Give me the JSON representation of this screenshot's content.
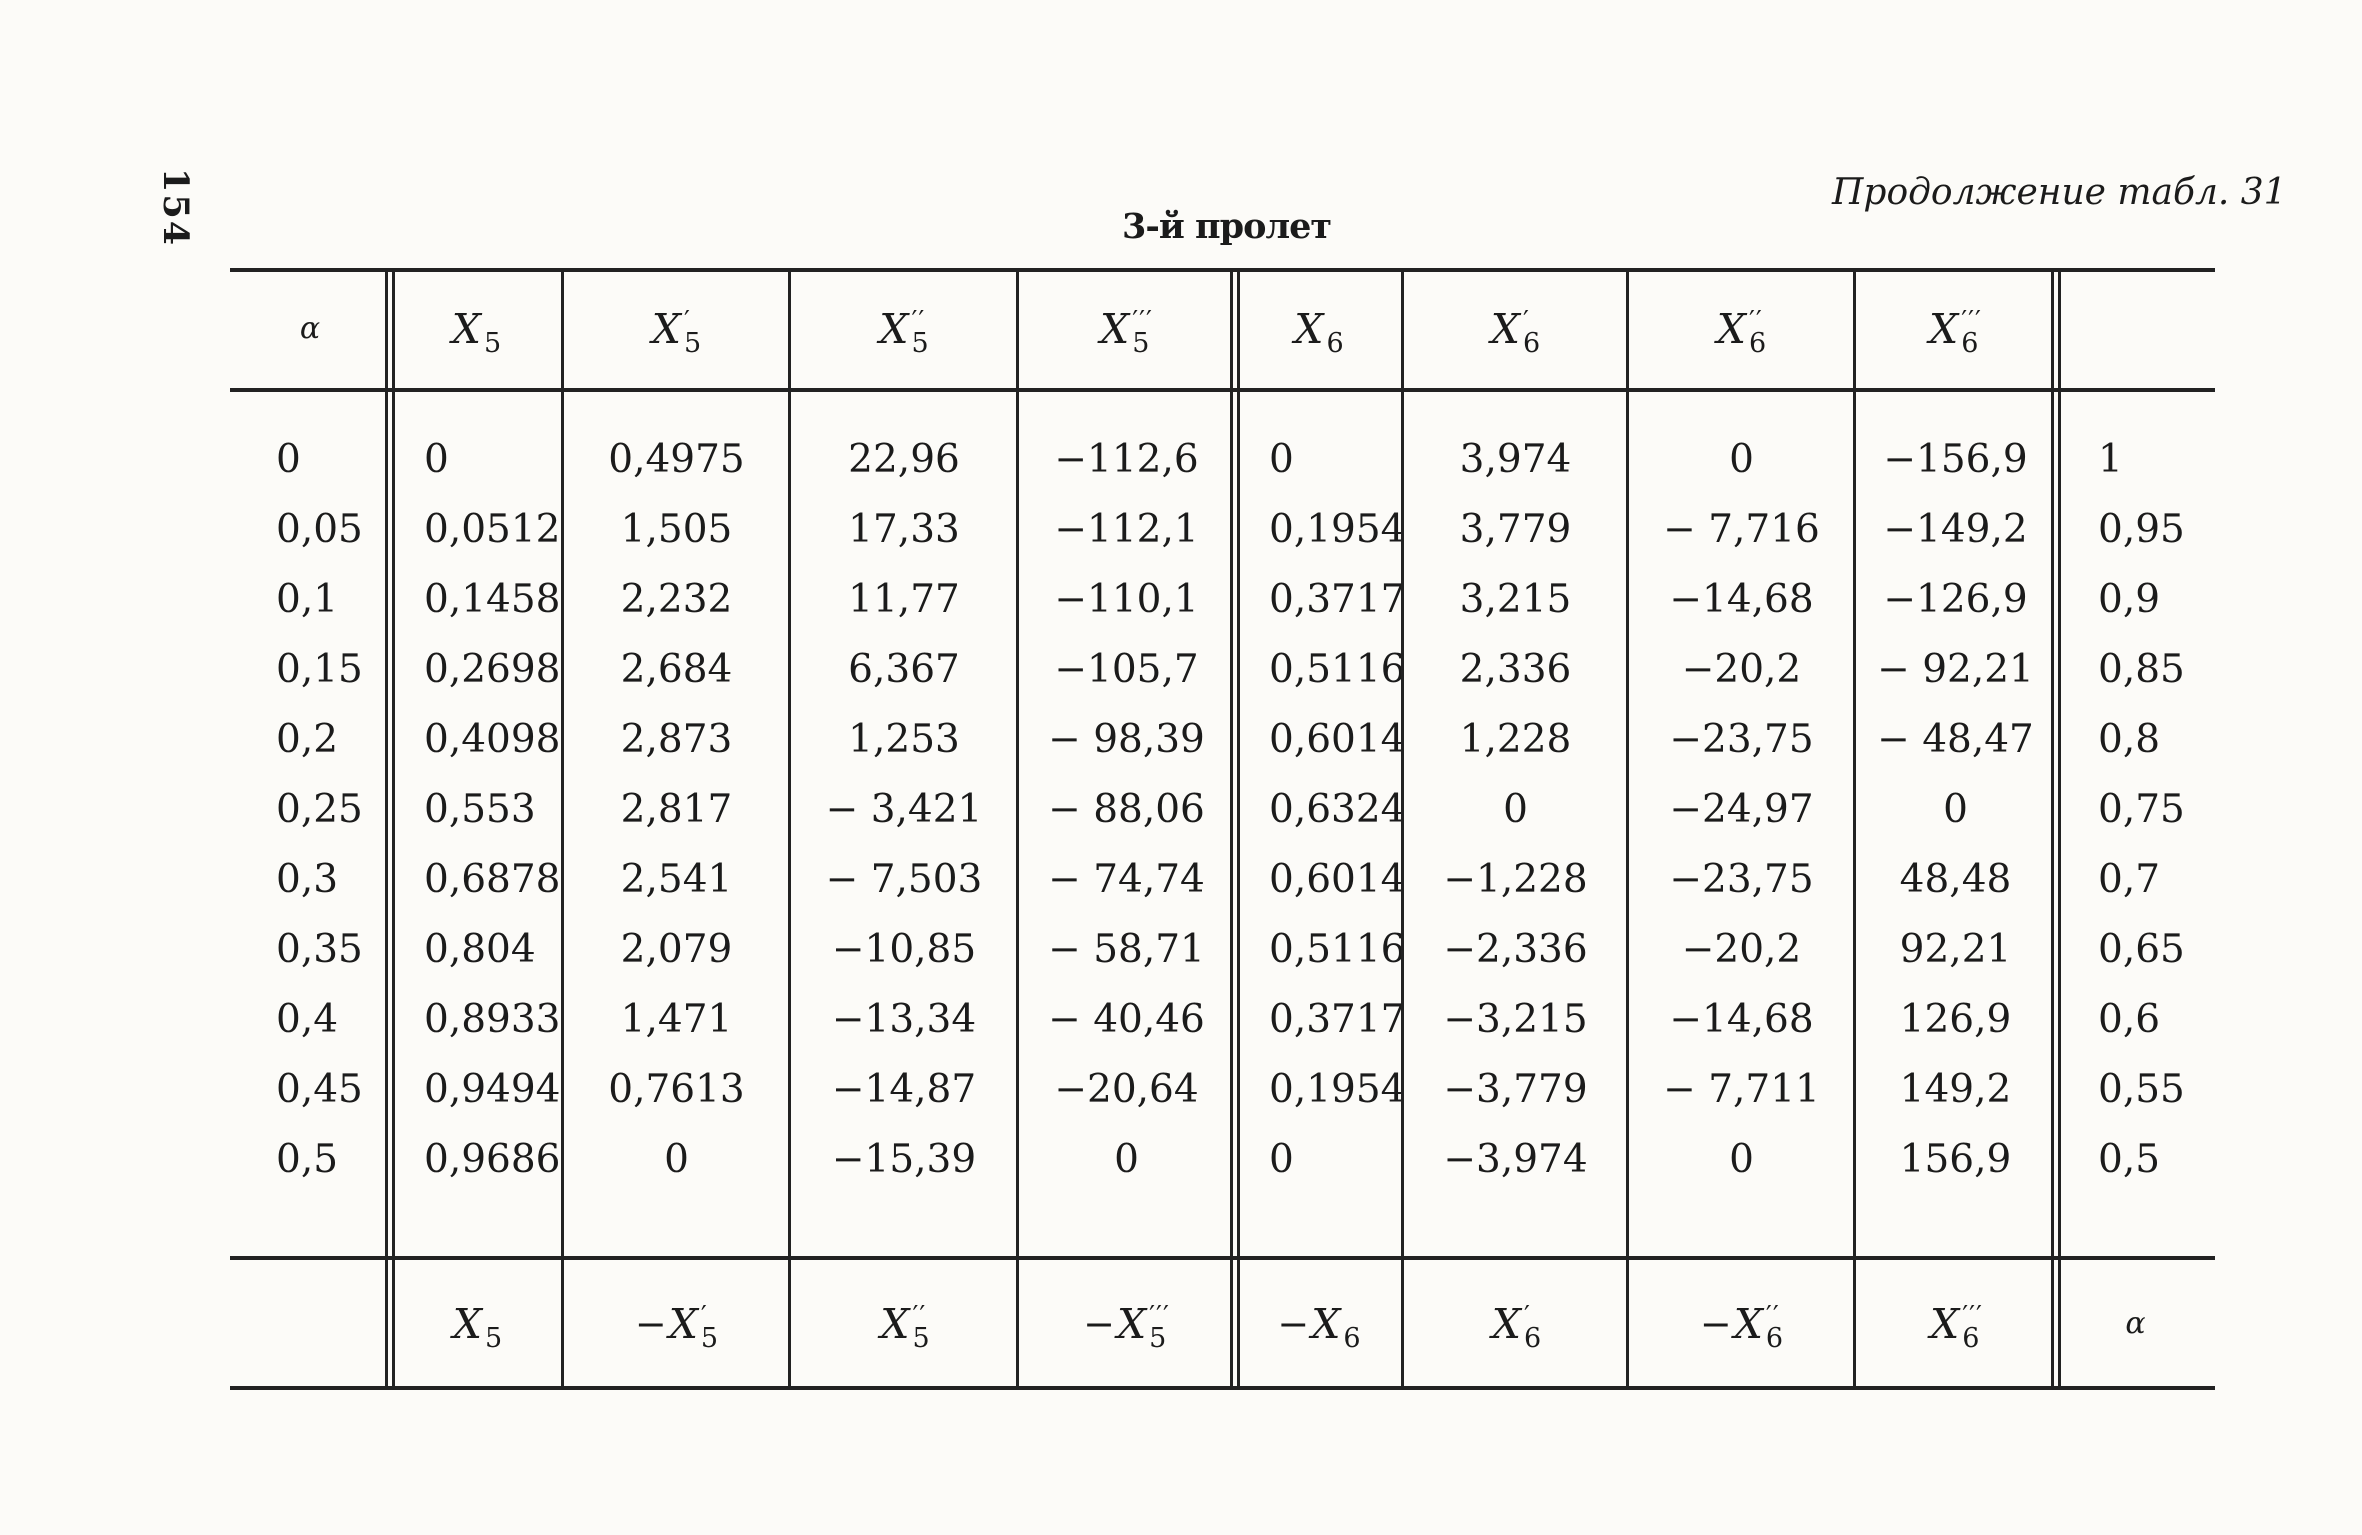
{
  "colors": {
    "ink": "#1b1b1b",
    "paper": "#fcfbf8"
  },
  "page": {
    "number": "154",
    "continuation": "Продолжение табл. 31",
    "table_title": "3-й пролет"
  },
  "table": {
    "header": {
      "alpha": "α",
      "cols": [
        {
          "base": "X",
          "primes": "",
          "sub": "5"
        },
        {
          "base": "X",
          "primes": "′",
          "sub": "5"
        },
        {
          "base": "X",
          "primes": "′′",
          "sub": "5"
        },
        {
          "base": "X",
          "primes": "′′′",
          "sub": "5"
        },
        {
          "base": "X",
          "primes": "",
          "sub": "6"
        },
        {
          "base": "X",
          "primes": "′",
          "sub": "6"
        },
        {
          "base": "X",
          "primes": "′′",
          "sub": "6"
        },
        {
          "base": "X",
          "primes": "′′′",
          "sub": "6"
        }
      ],
      "last": ""
    },
    "rows": [
      [
        "0",
        "0",
        "0,4975",
        "22,96",
        "−112,6",
        "0",
        "3,974",
        "0",
        "−156,9",
        "1"
      ],
      [
        "0,05",
        "0,0512",
        "1,505",
        "17,33",
        "−112,1",
        "0,1954",
        "3,779",
        "− 7,716",
        "−149,2",
        "0,95"
      ],
      [
        "0,1",
        "0,1458",
        "2,232",
        "11,77",
        "−110,1",
        "0,3717",
        "3,215",
        "−14,68",
        "−126,9",
        "0,9"
      ],
      [
        "0,15",
        "0,2698",
        "2,684",
        "6,367",
        "−105,7",
        "0,5116",
        "2,336",
        "−20,2",
        "− 92,21",
        "0,85"
      ],
      [
        "0,2",
        "0,4098",
        "2,873",
        "1,253",
        "− 98,39",
        "0,6014",
        "1,228",
        "−23,75",
        "− 48,47",
        "0,8"
      ],
      [
        "0,25",
        "0,553",
        "2,817",
        "− 3,421",
        "− 88,06",
        "0,6324",
        "0",
        "−24,97",
        "0",
        "0,75"
      ],
      [
        "0,3",
        "0,6878",
        "2,541",
        "− 7,503",
        "− 74,74",
        "0,6014",
        "−1,228",
        "−23,75",
        "48,48",
        "0,7"
      ],
      [
        "0,35",
        "0,804",
        "2,079",
        "−10,85",
        "− 58,71",
        "0,5116",
        "−2,336",
        "−20,2",
        "92,21",
        "0,65"
      ],
      [
        "0,4",
        "0,8933",
        "1,471",
        "−13,34",
        "− 40,46",
        "0,3717",
        "−3,215",
        "−14,68",
        "126,9",
        "0,6"
      ],
      [
        "0,45",
        "0,9494",
        "0,7613",
        "−14,87",
        "−20,64",
        "0,1954",
        "−3,779",
        "− 7,711",
        "149,2",
        "0,55"
      ],
      [
        "0,5",
        "0,9686",
        "0",
        "−15,39",
        "0",
        "0",
        "−3,974",
        "0",
        "156,9",
        "0,5"
      ]
    ],
    "footer": {
      "first": "",
      "cols": [
        {
          "prefix": "",
          "base": "X",
          "primes": "",
          "sub": "5"
        },
        {
          "prefix": "−",
          "base": "X",
          "primes": "′",
          "sub": "5"
        },
        {
          "prefix": "",
          "base": "X",
          "primes": "′′",
          "sub": "5"
        },
        {
          "prefix": "−",
          "base": "X",
          "primes": "′′′",
          "sub": "5"
        },
        {
          "prefix": "−",
          "base": "X",
          "primes": "",
          "sub": "6"
        },
        {
          "prefix": "",
          "base": "X",
          "primes": "′",
          "sub": "6"
        },
        {
          "prefix": "−",
          "base": "X",
          "primes": "′′",
          "sub": "6"
        },
        {
          "prefix": "",
          "base": "X",
          "primes": "′′′",
          "sub": "6"
        }
      ],
      "last": "α"
    }
  }
}
